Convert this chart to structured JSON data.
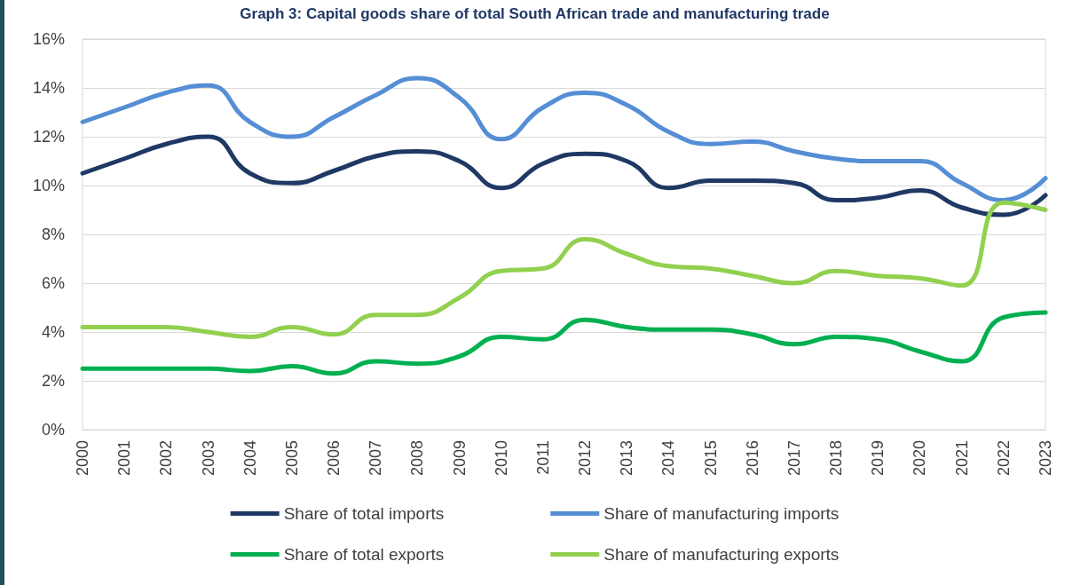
{
  "chart_data": {
    "type": "line",
    "title": "Graph 3: Capital goods share of total South African trade and manufacturing trade",
    "categories": [
      "2000",
      "2001",
      "2002",
      "2003",
      "2004",
      "2005",
      "2006",
      "2007",
      "2008",
      "2009",
      "2010",
      "2011",
      "2012",
      "2013",
      "2014",
      "2015",
      "2016",
      "2017",
      "2018",
      "2019",
      "2020",
      "2021",
      "2022",
      "2023"
    ],
    "series": [
      {
        "name": "Share of total imports",
        "color": "#1f3864",
        "values": [
          10.5,
          11.1,
          11.7,
          12.0,
          10.5,
          10.1,
          10.6,
          11.2,
          11.4,
          11.0,
          9.9,
          10.9,
          11.3,
          11.0,
          9.9,
          10.2,
          10.2,
          10.1,
          9.4,
          9.5,
          9.8,
          9.1,
          8.8,
          9.6
        ]
      },
      {
        "name": "Share of manufacturing imports",
        "color": "#558ed5",
        "values": [
          12.6,
          13.2,
          13.8,
          14.1,
          12.6,
          12.0,
          12.8,
          13.7,
          14.4,
          13.6,
          11.9,
          13.2,
          13.8,
          13.3,
          12.2,
          11.7,
          11.8,
          11.4,
          11.1,
          11.0,
          11.0,
          10.1,
          9.4,
          10.3
        ]
      },
      {
        "name": "Share of total exports",
        "color": "#00b050",
        "values": [
          2.5,
          2.5,
          2.5,
          2.5,
          2.4,
          2.6,
          2.3,
          2.8,
          2.7,
          3.0,
          3.8,
          3.7,
          4.5,
          4.2,
          4.1,
          4.1,
          3.9,
          3.5,
          3.8,
          3.7,
          3.2,
          2.8,
          4.6,
          4.8
        ]
      },
      {
        "name": "Share of manufacturing exports",
        "color": "#92d050",
        "values": [
          4.2,
          4.2,
          4.2,
          4.0,
          3.8,
          4.2,
          3.9,
          4.7,
          4.7,
          5.4,
          6.5,
          6.6,
          7.8,
          7.2,
          6.7,
          6.6,
          6.3,
          6.0,
          6.5,
          6.3,
          6.2,
          5.9,
          9.3,
          9.0
        ]
      }
    ],
    "ylim": [
      0,
      16
    ],
    "yticks": [
      {
        "value": 0,
        "label": "0%"
      },
      {
        "value": 2,
        "label": "2%"
      },
      {
        "value": 4,
        "label": "4%"
      },
      {
        "value": 6,
        "label": "6%"
      },
      {
        "value": 8,
        "label": "8%"
      },
      {
        "value": 10,
        "label": "10%"
      },
      {
        "value": 12,
        "label": "12%"
      },
      {
        "value": 14,
        "label": "14%"
      },
      {
        "value": 16,
        "label": "16%"
      }
    ],
    "grid": "y",
    "legend": "bottom",
    "marker": "none",
    "line_style": "solid"
  }
}
